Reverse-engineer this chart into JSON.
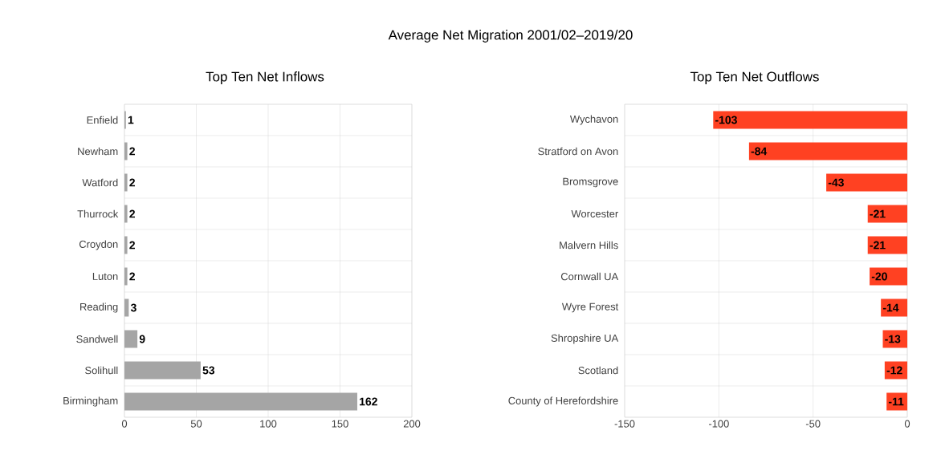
{
  "chart_data": [
    {
      "type": "bar",
      "orientation": "horizontal",
      "title": "Average Net Migration 2001/02–2019/20",
      "subtitle": "Top Ten Net Inflows",
      "categories": [
        "Enfield",
        "Newham",
        "Watford",
        "Thurrock",
        "Croydon",
        "Luton",
        "Reading",
        "Sandwell",
        "Solihull",
        "Birmingham"
      ],
      "values": [
        1,
        2,
        2,
        2,
        2,
        2,
        3,
        9,
        53,
        162
      ],
      "color": "#a5a5a5",
      "data_labels": true,
      "xlim": [
        0,
        200
      ],
      "xticks": [
        0,
        50,
        100,
        150,
        200
      ],
      "grid": true
    },
    {
      "type": "bar",
      "orientation": "horizontal",
      "subtitle": "Top Ten Net Outflows",
      "categories": [
        "Wychavon",
        "Stratford on Avon",
        "Bromsgrove",
        "Worcester",
        "Malvern Hills",
        "Cornwall UA",
        "Wyre Forest",
        "Shropshire UA",
        "Scotland",
        "County of Herefordshire"
      ],
      "values": [
        -103,
        -84,
        -43,
        -21,
        -21,
        -20,
        -14,
        -13,
        -12,
        -11
      ],
      "color": "#ff4122",
      "data_labels": true,
      "xlim": [
        -150,
        0
      ],
      "xticks": [
        -150,
        -100,
        -50,
        0
      ],
      "grid": true
    }
  ]
}
